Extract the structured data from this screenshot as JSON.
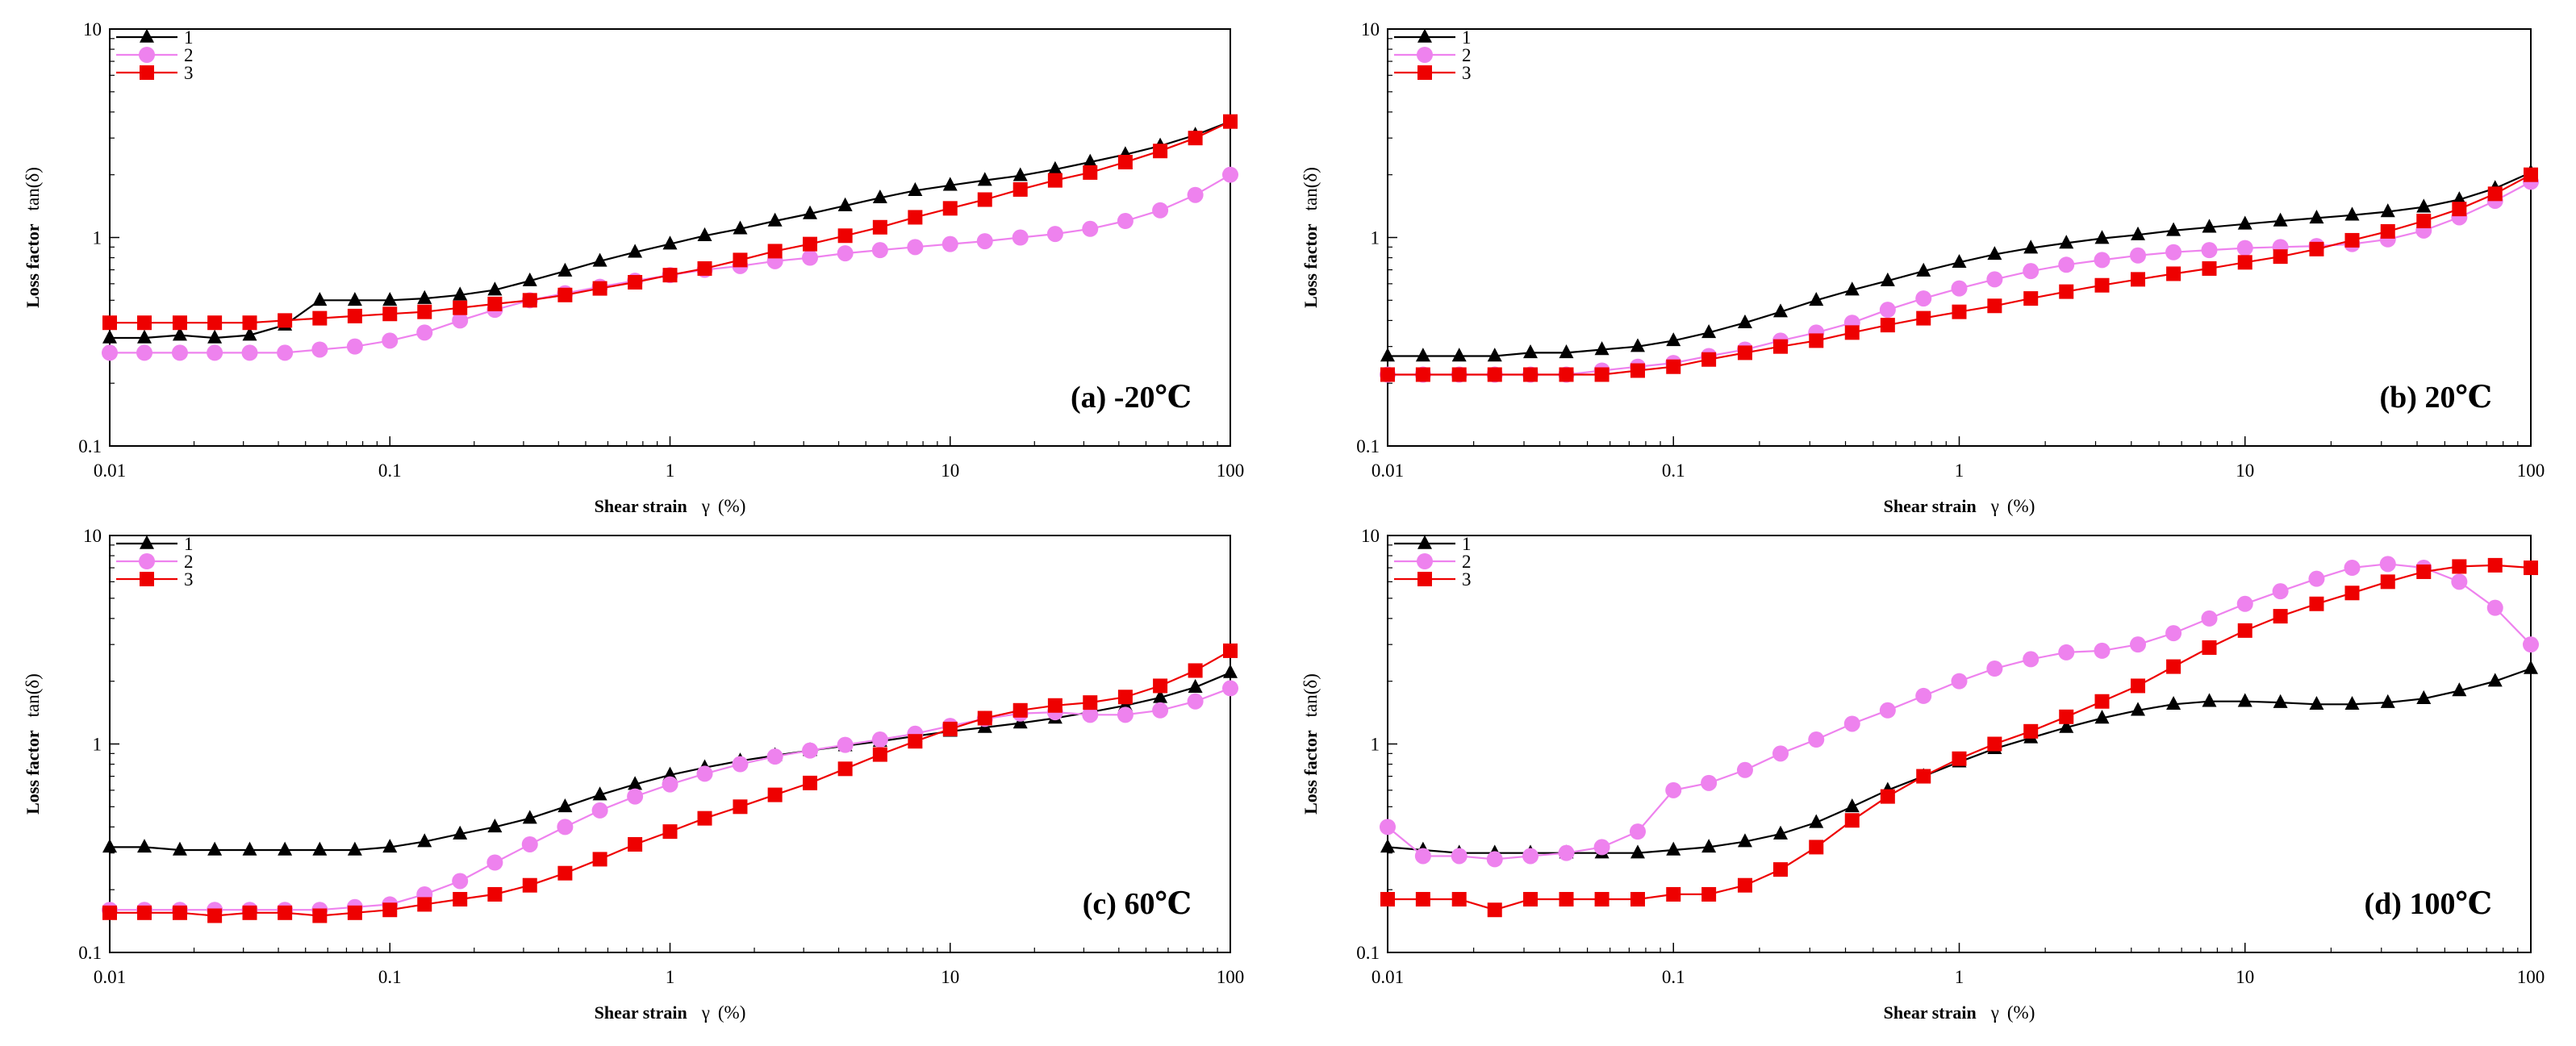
{
  "chart_data": [
    {
      "type": "line",
      "panel_label": "(a) -20℃",
      "xlabel": "Shear strain",
      "xlabel_symbol": "γ",
      "xlabel_unit": "(%)",
      "ylabel": "Loss factor",
      "ylabel_symbol": "tan(δ)",
      "xscale": "log",
      "yscale": "log",
      "xlim": [
        0.01,
        100
      ],
      "ylim": [
        0.1,
        10
      ],
      "xticks": [
        "0.01",
        "0.1",
        "1",
        "10",
        "100"
      ],
      "yticks": [
        "0.1",
        "1",
        "10"
      ],
      "legend": "top-left",
      "x": [
        0.01,
        0.0133,
        0.0178,
        0.0237,
        0.0316,
        0.0422,
        0.0562,
        0.075,
        0.1,
        0.133,
        0.178,
        0.237,
        0.316,
        0.422,
        0.562,
        0.75,
        1,
        1.33,
        1.78,
        2.37,
        3.16,
        4.22,
        5.62,
        7.5,
        10,
        13.3,
        17.8,
        23.7,
        31.6,
        42.2,
        56.2,
        75,
        100
      ],
      "series": [
        {
          "name": "1",
          "color": "#000000",
          "marker": "triangle",
          "values": [
            0.33,
            0.33,
            0.34,
            0.33,
            0.34,
            0.38,
            0.5,
            0.5,
            0.5,
            0.51,
            0.53,
            0.56,
            0.62,
            0.69,
            0.77,
            0.85,
            0.93,
            1.02,
            1.1,
            1.2,
            1.3,
            1.42,
            1.55,
            1.68,
            1.78,
            1.88,
            1.98,
            2.12,
            2.3,
            2.5,
            2.75,
            3.1,
            3.6
          ]
        },
        {
          "name": "2",
          "color": "#ee82ee",
          "marker": "circle",
          "values": [
            0.28,
            0.28,
            0.28,
            0.28,
            0.28,
            0.28,
            0.29,
            0.3,
            0.32,
            0.35,
            0.4,
            0.45,
            0.5,
            0.54,
            0.58,
            0.62,
            0.66,
            0.7,
            0.73,
            0.77,
            0.8,
            0.84,
            0.87,
            0.9,
            0.93,
            0.96,
            1.0,
            1.04,
            1.1,
            1.2,
            1.35,
            1.6,
            2.0
          ]
        },
        {
          "name": "3",
          "color": "#ee0000",
          "marker": "square",
          "values": [
            0.39,
            0.39,
            0.39,
            0.39,
            0.39,
            0.4,
            0.41,
            0.42,
            0.43,
            0.44,
            0.46,
            0.48,
            0.5,
            0.53,
            0.57,
            0.61,
            0.66,
            0.71,
            0.78,
            0.86,
            0.93,
            1.02,
            1.12,
            1.25,
            1.38,
            1.52,
            1.7,
            1.88,
            2.05,
            2.3,
            2.6,
            3.0,
            3.6
          ]
        }
      ]
    },
    {
      "type": "line",
      "panel_label": "(b) 20℃",
      "xlabel": "Shear strain",
      "xlabel_symbol": "γ",
      "xlabel_unit": "(%)",
      "ylabel": "Loss factor",
      "ylabel_symbol": "tan(δ)",
      "xscale": "log",
      "yscale": "log",
      "xlim": [
        0.01,
        100
      ],
      "ylim": [
        0.1,
        10
      ],
      "xticks": [
        "0.01",
        "0.1",
        "1",
        "10",
        "100"
      ],
      "yticks": [
        "0.1",
        "1",
        "10"
      ],
      "legend": "top-left",
      "x": [
        0.01,
        0.0133,
        0.0178,
        0.0237,
        0.0316,
        0.0422,
        0.0562,
        0.075,
        0.1,
        0.133,
        0.178,
        0.237,
        0.316,
        0.422,
        0.562,
        0.75,
        1,
        1.33,
        1.78,
        2.37,
        3.16,
        4.22,
        5.62,
        7.5,
        10,
        13.3,
        17.8,
        23.7,
        31.6,
        42.2,
        56.2,
        75,
        100
      ],
      "series": [
        {
          "name": "1",
          "color": "#000000",
          "marker": "triangle",
          "values": [
            0.27,
            0.27,
            0.27,
            0.27,
            0.28,
            0.28,
            0.29,
            0.3,
            0.32,
            0.35,
            0.39,
            0.44,
            0.5,
            0.56,
            0.62,
            0.69,
            0.76,
            0.83,
            0.89,
            0.94,
            0.99,
            1.03,
            1.08,
            1.12,
            1.16,
            1.2,
            1.24,
            1.28,
            1.33,
            1.4,
            1.52,
            1.72,
            2.05
          ]
        },
        {
          "name": "2",
          "color": "#ee82ee",
          "marker": "circle",
          "values": [
            0.22,
            0.22,
            0.22,
            0.22,
            0.22,
            0.22,
            0.23,
            0.24,
            0.25,
            0.27,
            0.29,
            0.32,
            0.35,
            0.39,
            0.45,
            0.51,
            0.57,
            0.63,
            0.69,
            0.74,
            0.78,
            0.82,
            0.85,
            0.87,
            0.89,
            0.9,
            0.91,
            0.93,
            0.98,
            1.08,
            1.25,
            1.5,
            1.85
          ]
        },
        {
          "name": "3",
          "color": "#ee0000",
          "marker": "square",
          "values": [
            0.22,
            0.22,
            0.22,
            0.22,
            0.22,
            0.22,
            0.22,
            0.23,
            0.24,
            0.26,
            0.28,
            0.3,
            0.32,
            0.35,
            0.38,
            0.41,
            0.44,
            0.47,
            0.51,
            0.55,
            0.59,
            0.63,
            0.67,
            0.71,
            0.76,
            0.81,
            0.88,
            0.97,
            1.07,
            1.2,
            1.37,
            1.62,
            2.0
          ]
        }
      ]
    },
    {
      "type": "line",
      "panel_label": "(c) 60℃",
      "xlabel": "Shear strain",
      "xlabel_symbol": "γ",
      "xlabel_unit": "(%)",
      "ylabel": "Loss factor",
      "ylabel_symbol": "tan(δ)",
      "xscale": "log",
      "yscale": "log",
      "xlim": [
        0.01,
        100
      ],
      "ylim": [
        0.1,
        10
      ],
      "xticks": [
        "0.01",
        "0.1",
        "1",
        "10",
        "100"
      ],
      "yticks": [
        "0.1",
        "1",
        "10"
      ],
      "legend": "top-left",
      "x": [
        0.01,
        0.0133,
        0.0178,
        0.0237,
        0.0316,
        0.0422,
        0.0562,
        0.075,
        0.1,
        0.133,
        0.178,
        0.237,
        0.316,
        0.422,
        0.562,
        0.75,
        1,
        1.33,
        1.78,
        2.37,
        3.16,
        4.22,
        5.62,
        7.5,
        10,
        13.3,
        17.8,
        23.7,
        31.6,
        42.2,
        56.2,
        75,
        100
      ],
      "series": [
        {
          "name": "1",
          "color": "#000000",
          "marker": "triangle",
          "values": [
            0.32,
            0.32,
            0.31,
            0.31,
            0.31,
            0.31,
            0.31,
            0.31,
            0.32,
            0.34,
            0.37,
            0.4,
            0.44,
            0.5,
            0.57,
            0.64,
            0.71,
            0.77,
            0.83,
            0.88,
            0.93,
            0.98,
            1.03,
            1.09,
            1.15,
            1.2,
            1.26,
            1.33,
            1.42,
            1.53,
            1.67,
            1.87,
            2.2
          ]
        },
        {
          "name": "2",
          "color": "#ee82ee",
          "marker": "circle",
          "values": [
            0.16,
            0.16,
            0.16,
            0.16,
            0.16,
            0.16,
            0.16,
            0.165,
            0.17,
            0.19,
            0.22,
            0.27,
            0.33,
            0.4,
            0.48,
            0.56,
            0.64,
            0.72,
            0.8,
            0.87,
            0.93,
            0.99,
            1.05,
            1.12,
            1.22,
            1.32,
            1.4,
            1.42,
            1.38,
            1.38,
            1.45,
            1.6,
            1.85
          ]
        },
        {
          "name": "3",
          "color": "#ee0000",
          "marker": "square",
          "values": [
            0.155,
            0.155,
            0.155,
            0.15,
            0.155,
            0.155,
            0.15,
            0.155,
            0.16,
            0.17,
            0.18,
            0.19,
            0.21,
            0.24,
            0.28,
            0.33,
            0.38,
            0.44,
            0.5,
            0.57,
            0.65,
            0.76,
            0.89,
            1.03,
            1.18,
            1.33,
            1.45,
            1.53,
            1.58,
            1.68,
            1.9,
            2.25,
            2.8
          ]
        }
      ]
    },
    {
      "type": "line",
      "panel_label": "(d) 100℃",
      "xlabel": "Shear strain",
      "xlabel_symbol": "γ",
      "xlabel_unit": "(%)",
      "ylabel": "Loss factor",
      "ylabel_symbol": "tan(δ)",
      "xscale": "log",
      "yscale": "log",
      "xlim": [
        0.01,
        100
      ],
      "ylim": [
        0.1,
        10
      ],
      "xticks": [
        "0.01",
        "0.1",
        "1",
        "10",
        "100"
      ],
      "yticks": [
        "0.1",
        "1",
        "10"
      ],
      "legend": "top-left",
      "x": [
        0.01,
        0.0133,
        0.0178,
        0.0237,
        0.0316,
        0.0422,
        0.0562,
        0.075,
        0.1,
        0.133,
        0.178,
        0.237,
        0.316,
        0.422,
        0.562,
        0.75,
        1,
        1.33,
        1.78,
        2.37,
        3.16,
        4.22,
        5.62,
        7.5,
        10,
        13.3,
        17.8,
        23.7,
        31.6,
        42.2,
        56.2,
        75,
        100
      ],
      "series": [
        {
          "name": "1",
          "color": "#000000",
          "marker": "triangle",
          "values": [
            0.32,
            0.31,
            0.3,
            0.3,
            0.3,
            0.3,
            0.3,
            0.3,
            0.31,
            0.32,
            0.34,
            0.37,
            0.42,
            0.5,
            0.6,
            0.7,
            0.82,
            0.95,
            1.07,
            1.2,
            1.33,
            1.45,
            1.55,
            1.6,
            1.6,
            1.58,
            1.55,
            1.55,
            1.58,
            1.65,
            1.8,
            2.0,
            2.3
          ]
        },
        {
          "name": "2",
          "color": "#ee82ee",
          "marker": "circle",
          "values": [
            0.4,
            0.29,
            0.29,
            0.28,
            0.29,
            0.3,
            0.32,
            0.38,
            0.6,
            0.65,
            0.75,
            0.9,
            1.05,
            1.25,
            1.45,
            1.7,
            2.0,
            2.3,
            2.55,
            2.75,
            2.8,
            3.0,
            3.4,
            4.0,
            4.7,
            5.4,
            6.2,
            7.0,
            7.3,
            7.0,
            6.0,
            4.5,
            3.0
          ]
        },
        {
          "name": "3",
          "color": "#ee0000",
          "marker": "square",
          "values": [
            0.18,
            0.18,
            0.18,
            0.16,
            0.18,
            0.18,
            0.18,
            0.18,
            0.19,
            0.19,
            0.21,
            0.25,
            0.32,
            0.43,
            0.56,
            0.7,
            0.85,
            1.0,
            1.15,
            1.35,
            1.6,
            1.9,
            2.35,
            2.9,
            3.5,
            4.1,
            4.7,
            5.3,
            6.0,
            6.7,
            7.1,
            7.2,
            7.0
          ]
        }
      ]
    }
  ]
}
